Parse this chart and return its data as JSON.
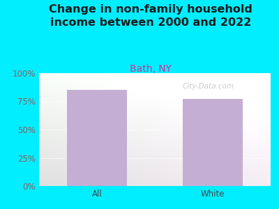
{
  "categories": [
    "All",
    "White"
  ],
  "values": [
    85,
    77
  ],
  "bar_color": "#c4aed4",
  "title": "Change in non-family household\nincome between 2000 and 2022",
  "subtitle": "Bath, NY",
  "title_color": "#1a1a1a",
  "subtitle_color": "#cc3399",
  "ylabel_color": "#8B6060",
  "xlabel_color": "#444444",
  "bg_color": "#00eeff",
  "ylim": [
    0,
    100
  ],
  "yticks": [
    0,
    25,
    50,
    75,
    100
  ],
  "ytick_labels": [
    "0%",
    "25%",
    "50%",
    "75%",
    "100%"
  ],
  "watermark": "City-Data.com",
  "title_fontsize": 11.5,
  "subtitle_fontsize": 10,
  "tick_fontsize": 8.5
}
